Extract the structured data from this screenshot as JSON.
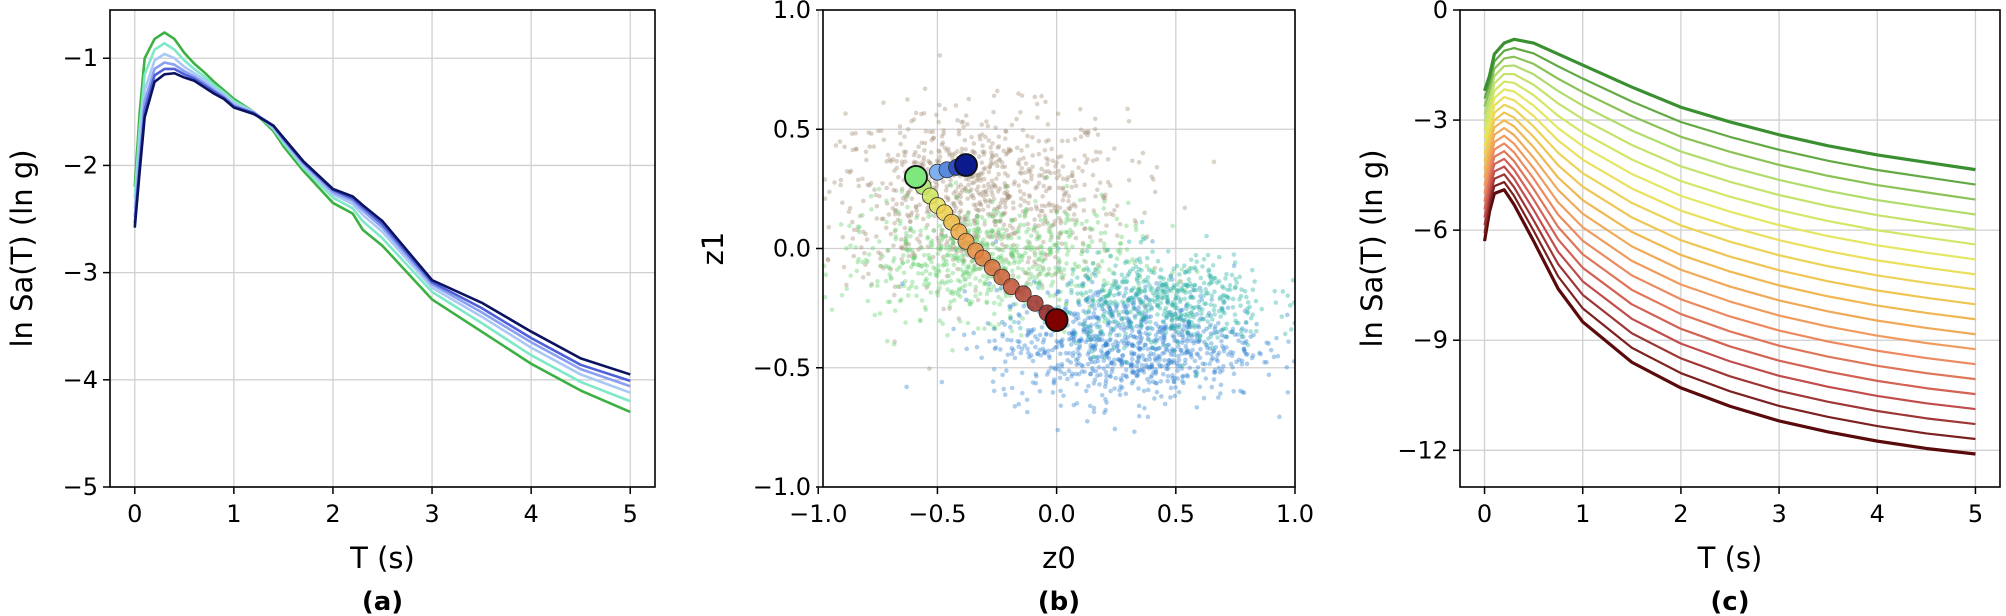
{
  "chart_data": [
    {
      "type": "line",
      "panel_label": "(a)",
      "xlabel": "T (s)",
      "ylabel": "ln Sa(T) (ln g)",
      "xlim": [
        -0.25,
        5.25
      ],
      "ylim": [
        -5,
        -0.55
      ],
      "xticks": [
        "0",
        "1",
        "2",
        "3",
        "4",
        "5"
      ],
      "yticks": [
        "−5",
        "−4",
        "−3",
        "−2",
        "−1"
      ],
      "grid": true,
      "legend": "none",
      "x": [
        0,
        0.05,
        0.1,
        0.2,
        0.3,
        0.4,
        0.5,
        0.6,
        0.7,
        0.8,
        0.9,
        1.0,
        1.2,
        1.4,
        1.5,
        1.7,
        2.0,
        2.2,
        2.3,
        2.5,
        3.0,
        3.5,
        4.0,
        4.5,
        5.0
      ],
      "series": [
        {
          "color": "#3cb043",
          "values": [
            -2.2,
            -1.5,
            -1.0,
            -0.82,
            -0.76,
            -0.82,
            -0.95,
            -1.05,
            -1.13,
            -1.22,
            -1.3,
            -1.38,
            -1.5,
            -1.68,
            -1.82,
            -2.05,
            -2.35,
            -2.45,
            -2.6,
            -2.75,
            -3.25,
            -3.55,
            -3.85,
            -4.1,
            -4.3
          ]
        },
        {
          "color": "#7ee8c8",
          "values": [
            -2.3,
            -1.65,
            -1.15,
            -0.92,
            -0.86,
            -0.92,
            -1.02,
            -1.1,
            -1.17,
            -1.25,
            -1.32,
            -1.4,
            -1.5,
            -1.66,
            -1.79,
            -2.02,
            -2.3,
            -2.4,
            -2.52,
            -2.68,
            -3.18,
            -3.47,
            -3.77,
            -4.02,
            -4.2
          ]
        },
        {
          "color": "#a9c8f5",
          "values": [
            -2.4,
            -1.8,
            -1.3,
            -1.02,
            -0.96,
            -1.0,
            -1.08,
            -1.14,
            -1.2,
            -1.28,
            -1.34,
            -1.42,
            -1.5,
            -1.65,
            -1.77,
            -2.0,
            -2.27,
            -2.36,
            -2.46,
            -2.62,
            -3.14,
            -3.41,
            -3.7,
            -3.95,
            -4.12
          ]
        },
        {
          "color": "#8aa0f0",
          "values": [
            -2.48,
            -1.92,
            -1.4,
            -1.1,
            -1.04,
            -1.06,
            -1.12,
            -1.17,
            -1.23,
            -1.3,
            -1.36,
            -1.44,
            -1.51,
            -1.64,
            -1.76,
            -1.98,
            -2.25,
            -2.33,
            -2.42,
            -2.58,
            -3.11,
            -3.37,
            -3.65,
            -3.9,
            -4.06
          ]
        },
        {
          "color": "#5060d8",
          "values": [
            -2.54,
            -2.0,
            -1.48,
            -1.16,
            -1.1,
            -1.1,
            -1.15,
            -1.19,
            -1.25,
            -1.31,
            -1.37,
            -1.45,
            -1.51,
            -1.63,
            -1.75,
            -1.97,
            -2.23,
            -2.31,
            -2.39,
            -2.55,
            -3.09,
            -3.33,
            -3.61,
            -3.86,
            -4.01
          ]
        },
        {
          "color": "#0b1260",
          "values": [
            -2.58,
            -2.05,
            -1.55,
            -1.22,
            -1.15,
            -1.14,
            -1.18,
            -1.21,
            -1.27,
            -1.33,
            -1.38,
            -1.46,
            -1.52,
            -1.63,
            -1.74,
            -1.96,
            -2.22,
            -2.29,
            -2.37,
            -2.52,
            -3.07,
            -3.28,
            -3.55,
            -3.8,
            -3.95
          ]
        }
      ]
    },
    {
      "type": "scatter",
      "panel_label": "(b)",
      "xlabel": "z0",
      "ylabel": "z1",
      "xlim": [
        -0.98,
        1.0
      ],
      "ylim": [
        -1.0,
        1.0
      ],
      "xticks": [
        "−1.0",
        "−0.5",
        "0.0",
        "0.5",
        "1.0"
      ],
      "yticks": [
        "−1.0",
        "−0.5",
        "0.0",
        "0.5",
        "1.0"
      ],
      "grid": true,
      "legend": "none",
      "clouds": [
        {
          "name": "",
          "color": "#a08c74",
          "center": [
            -0.35,
            0.22
          ],
          "spread": [
            0.32,
            0.18
          ],
          "count": 900
        },
        {
          "name": "",
          "color": "#5fd06a",
          "center": [
            -0.3,
            -0.05
          ],
          "spread": [
            0.3,
            0.12
          ],
          "count": 700
        },
        {
          "name": "",
          "color": "#2a7fd0",
          "center": [
            0.3,
            -0.4
          ],
          "spread": [
            0.28,
            0.12
          ],
          "count": 900
        },
        {
          "name": "",
          "color": "#22b0a0",
          "center": [
            0.45,
            -0.22
          ],
          "spread": [
            0.22,
            0.1
          ],
          "count": 500
        }
      ],
      "path_points": [
        {
          "x": -0.59,
          "y": 0.3,
          "color": "#7ee87e"
        },
        {
          "x": -0.56,
          "y": 0.26,
          "color": "#aee86a"
        },
        {
          "x": -0.53,
          "y": 0.22,
          "color": "#cfe85e"
        },
        {
          "x": -0.5,
          "y": 0.18,
          "color": "#e6e05a"
        },
        {
          "x": -0.47,
          "y": 0.15,
          "color": "#f0d050"
        },
        {
          "x": -0.44,
          "y": 0.11,
          "color": "#f0bc48"
        },
        {
          "x": -0.41,
          "y": 0.07,
          "color": "#f0a844"
        },
        {
          "x": -0.38,
          "y": 0.03,
          "color": "#ec9a42"
        },
        {
          "x": -0.34,
          "y": -0.01,
          "color": "#e88c40"
        },
        {
          "x": -0.31,
          "y": -0.04,
          "color": "#e07c3c"
        },
        {
          "x": -0.27,
          "y": -0.08,
          "color": "#d86e38"
        },
        {
          "x": -0.23,
          "y": -0.12,
          "color": "#cc6036"
        },
        {
          "x": -0.19,
          "y": -0.16,
          "color": "#c05234"
        },
        {
          "x": -0.14,
          "y": -0.19,
          "color": "#b04030"
        },
        {
          "x": -0.09,
          "y": -0.23,
          "color": "#a0302c"
        },
        {
          "x": -0.04,
          "y": -0.27,
          "color": "#902020"
        },
        {
          "x": 0.0,
          "y": -0.3,
          "color": "#800000"
        }
      ],
      "endpoints": [
        {
          "x": -0.59,
          "y": 0.3,
          "color": "#7ee87e"
        },
        {
          "x": 0.0,
          "y": -0.3,
          "color": "#800000"
        },
        {
          "x": -0.38,
          "y": 0.35,
          "color": "#0b1a8c"
        }
      ],
      "blue_path": [
        {
          "x": -0.5,
          "y": 0.32,
          "color": "#7fb0f0"
        },
        {
          "x": -0.46,
          "y": 0.33,
          "color": "#5a8ae0"
        },
        {
          "x": -0.42,
          "y": 0.34,
          "color": "#3050c0"
        }
      ]
    },
    {
      "type": "line",
      "panel_label": "(c)",
      "xlabel": "T (s)",
      "ylabel": "ln Sa(T) (ln g)",
      "xlim": [
        -0.25,
        5.25
      ],
      "ylim": [
        -13,
        0
      ],
      "xticks": [
        "0",
        "1",
        "2",
        "3",
        "4",
        "5"
      ],
      "yticks": [
        "−12",
        "−9",
        "−6",
        "−3",
        "0"
      ],
      "grid": true,
      "legend": "none",
      "x": [
        0,
        0.05,
        0.1,
        0.2,
        0.3,
        0.5,
        0.75,
        1.0,
        1.5,
        2.0,
        2.5,
        3.0,
        3.5,
        4.0,
        4.5,
        5.0
      ],
      "top": [
        -2.2,
        -1.8,
        -1.2,
        -0.9,
        -0.8,
        -0.9,
        -1.2,
        -1.5,
        -2.1,
        -2.65,
        -3.05,
        -3.4,
        -3.7,
        -3.95,
        -4.15,
        -4.35
      ],
      "bottom": [
        -6.3,
        -5.5,
        -5.0,
        -4.9,
        -5.3,
        -6.3,
        -7.6,
        -8.5,
        -9.6,
        -10.3,
        -10.8,
        -11.2,
        -11.5,
        -11.75,
        -11.95,
        -12.1
      ],
      "count": 20,
      "top_color": "#3a8f30",
      "bottom_color": "#5a0a0a"
    }
  ]
}
